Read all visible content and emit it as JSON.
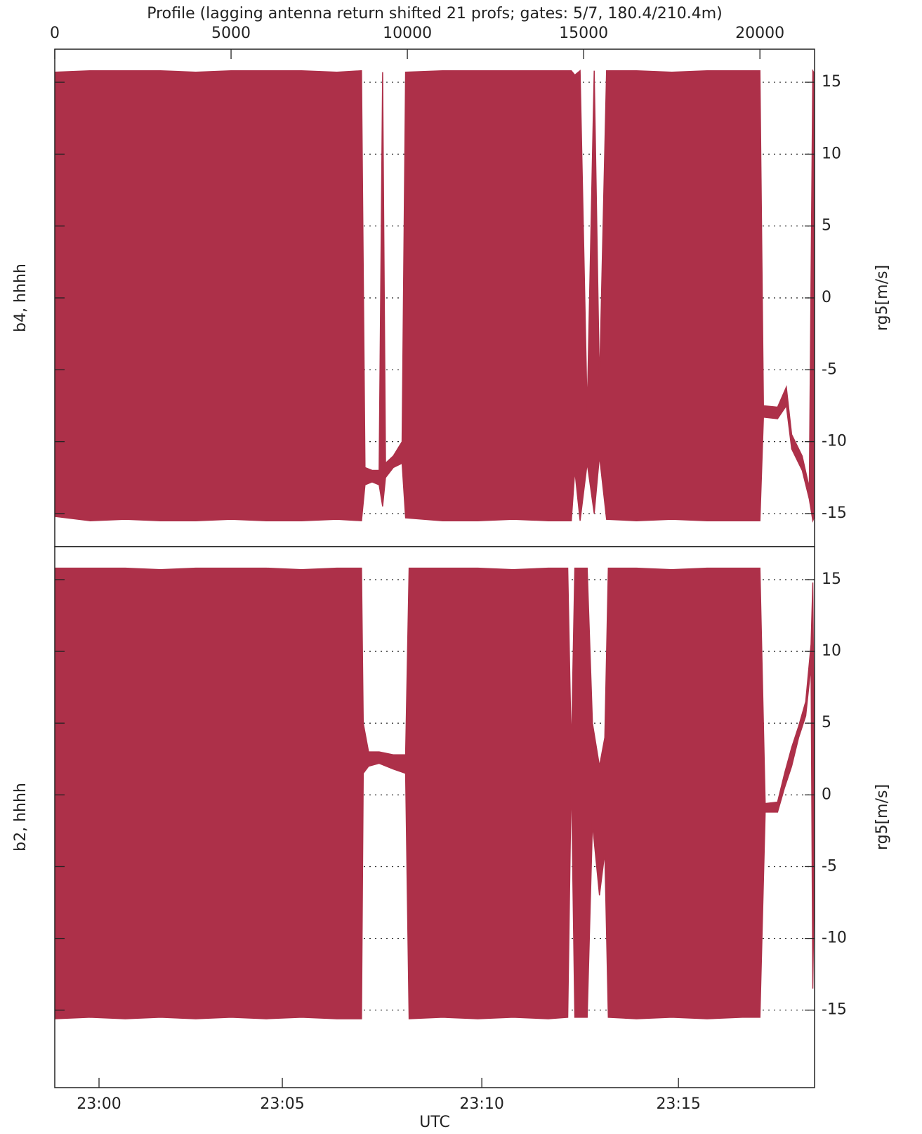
{
  "chart_data": [
    {
      "type": "range_area",
      "title": "Profile (lagging antenna return shifted 21 profs; gates: 5/7, 180.4/210.4m)",
      "top_xticks": [
        0,
        5000,
        10000,
        15000,
        20000
      ],
      "xlim": [
        0,
        21550
      ],
      "ylabel": "b4, hhhh",
      "y2label": "rg5[m/s]",
      "ylim": [
        -17.3,
        17.3
      ],
      "yticks": [
        -15,
        -10,
        -5,
        0,
        5,
        10,
        15
      ],
      "grid": true,
      "color": "#ad3049",
      "x": [
        0,
        1000,
        2000,
        3000,
        4000,
        5000,
        6000,
        7000,
        8000,
        8700,
        8800,
        9000,
        9200,
        9300,
        9380,
        9600,
        9850,
        9950,
        11000,
        12000,
        13000,
        14000,
        14650,
        14750,
        14900,
        15100,
        15300,
        15450,
        15650,
        16500,
        17500,
        18500,
        19500,
        20000,
        20100,
        20500,
        20750,
        20900,
        21200,
        21400,
        21500,
        21550
      ],
      "low": [
        -15.2,
        -15.5,
        -15.4,
        -15.5,
        -15.5,
        -15.4,
        -15.5,
        -15.5,
        -15.4,
        -15.5,
        -13,
        -12.8,
        -13,
        -14.5,
        -12.5,
        -11.8,
        -11.5,
        -15.3,
        -15.5,
        -15.5,
        -15.4,
        -15.5,
        -15.5,
        -12,
        -15.5,
        -11.5,
        -15,
        -11,
        -15.4,
        -15.5,
        -15.4,
        -15.5,
        -15.5,
        -15.5,
        -8.3,
        -8.4,
        -7.5,
        -10.5,
        -12,
        -14,
        -15.5,
        -15.2
      ],
      "high": [
        15.7,
        15.8,
        15.8,
        15.8,
        15.7,
        15.8,
        15.8,
        15.8,
        15.7,
        15.8,
        -11.8,
        -12,
        -12,
        15.7,
        -11.5,
        -11,
        -10,
        15.7,
        15.8,
        15.8,
        15.8,
        15.8,
        15.8,
        15.5,
        15.8,
        -8,
        15.8,
        -6,
        15.8,
        15.8,
        15.7,
        15.8,
        15.8,
        15.8,
        -7.5,
        -7.6,
        -6.2,
        -9.5,
        -11,
        -13.2,
        15.8,
        15.6
      ]
    },
    {
      "type": "range_area",
      "xlabel": "UTC",
      "xticks": [
        {
          "value": 1255,
          "label": "23:00"
        },
        {
          "value": 6454,
          "label": "23:05"
        },
        {
          "value": 12112,
          "label": "23:10"
        },
        {
          "value": 17689,
          "label": "23:15"
        }
      ],
      "xlim": [
        0,
        21550
      ],
      "ylabel": "b2, hhhh",
      "y2label": "rg5[m/s]",
      "ylim": [
        -20.4,
        17.3
      ],
      "yticks": [
        -15,
        -10,
        -5,
        0,
        5,
        10,
        15
      ],
      "grid": true,
      "color": "#ad3049",
      "x": [
        0,
        1000,
        2000,
        3000,
        4000,
        5000,
        6000,
        7000,
        8000,
        8700,
        8750,
        8900,
        9200,
        9600,
        9950,
        10050,
        11000,
        12000,
        13000,
        14000,
        14550,
        14650,
        14750,
        15100,
        15250,
        15450,
        15600,
        15700,
        16500,
        17500,
        18500,
        19500,
        20000,
        20150,
        20500,
        20700,
        20900,
        21100,
        21300,
        21450,
        21500,
        21550
      ],
      "low": [
        -15.6,
        -15.5,
        -15.6,
        -15.5,
        -15.6,
        -15.5,
        -15.6,
        -15.5,
        -15.6,
        -15.6,
        1.5,
        2,
        2.2,
        1.8,
        1.5,
        -15.6,
        -15.5,
        -15.6,
        -15.5,
        -15.6,
        -15.5,
        1.5,
        -15.5,
        -15.5,
        -2,
        -7,
        -4,
        -15.5,
        -15.6,
        -15.5,
        -15.6,
        -15.5,
        -15.5,
        -1.2,
        -1.2,
        0.5,
        2,
        4,
        5.5,
        9,
        -13.5,
        -4
      ],
      "high": [
        15.8,
        15.8,
        15.8,
        15.7,
        15.8,
        15.8,
        15.8,
        15.7,
        15.8,
        15.8,
        5,
        3,
        3,
        2.8,
        2.8,
        15.8,
        15.8,
        15.8,
        15.7,
        15.8,
        15.8,
        3,
        15.8,
        15.8,
        5,
        2,
        4,
        15.8,
        15.8,
        15.7,
        15.8,
        15.8,
        15.8,
        -0.6,
        -0.5,
        1.5,
        3.3,
        4.8,
        6.5,
        10.5,
        14.8,
        0
      ]
    }
  ]
}
